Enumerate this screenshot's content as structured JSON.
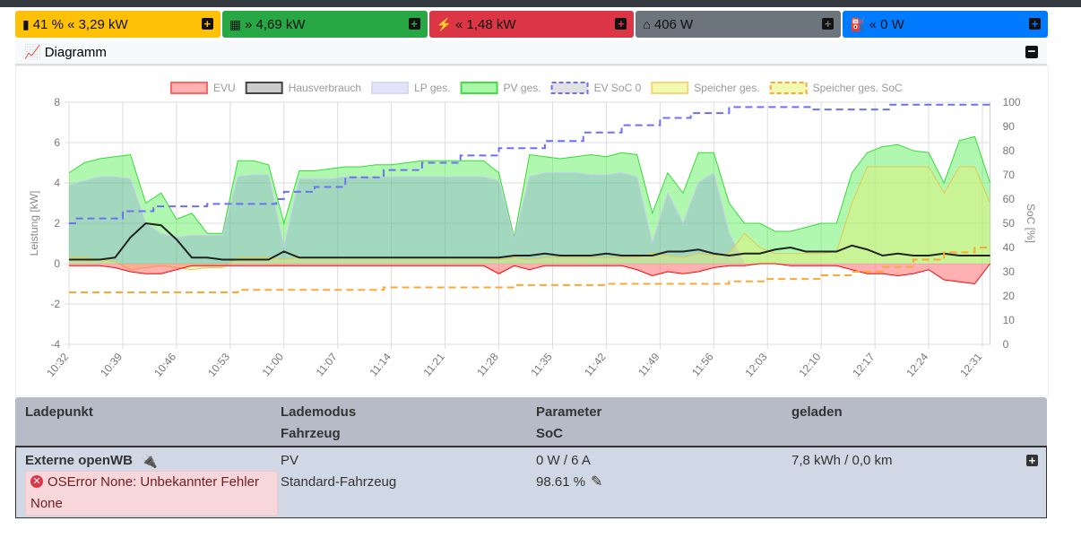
{
  "tiles": [
    {
      "icon": "battery-icon",
      "text": "41 % « 3,29 kW",
      "color": "#ffc107",
      "plus": "+"
    },
    {
      "icon": "solar-panel-icon",
      "text": "» 4,69 kW",
      "color": "#28a745",
      "plus": "+"
    },
    {
      "icon": "power-grid-icon",
      "text": "« 1,48 kW",
      "color": "#dc3545",
      "plus": "+"
    },
    {
      "icon": "house-icon",
      "text": "406 W",
      "color": "#6c757d",
      "plus": "+"
    },
    {
      "icon": "charging-station-icon",
      "text": "« 0 W",
      "color": "#007bff",
      "plus": "+"
    }
  ],
  "diagram": {
    "title": "Diagramm",
    "collapse": "−"
  },
  "chart_data": {
    "type": "area",
    "legend_position": "top",
    "ylabel": "Leistung [kW]",
    "y2label": "SoC [%]",
    "ylim": [
      -4,
      8
    ],
    "y2lim": [
      0,
      100
    ],
    "yticks": [
      "8",
      "6",
      "4",
      "2",
      "0",
      "-2",
      "-4"
    ],
    "y2ticks": [
      "100",
      "90",
      "80",
      "70",
      "60",
      "50",
      "40",
      "30",
      "20",
      "10",
      "0"
    ],
    "xticks": [
      "10:32",
      "10:39",
      "10:46",
      "10:53",
      "11:00",
      "11:07",
      "11:14",
      "11:21",
      "11:28",
      "11:35",
      "11:42",
      "11:49",
      "11:56",
      "12:03",
      "12:10",
      "12:17",
      "12:24",
      "12:31"
    ],
    "grid": true,
    "x": [
      "10:32",
      "10:34",
      "10:36",
      "10:38",
      "10:40",
      "10:42",
      "10:44",
      "10:46",
      "10:48",
      "10:50",
      "10:52",
      "10:54",
      "10:56",
      "10:58",
      "11:00",
      "11:02",
      "11:04",
      "11:06",
      "11:08",
      "11:10",
      "11:12",
      "11:14",
      "11:16",
      "11:18",
      "11:20",
      "11:22",
      "11:24",
      "11:26",
      "11:28",
      "11:30",
      "11:32",
      "11:34",
      "11:36",
      "11:38",
      "11:40",
      "11:42",
      "11:44",
      "11:46",
      "11:48",
      "11:50",
      "11:52",
      "11:54",
      "11:56",
      "11:58",
      "12:00",
      "12:02",
      "12:04",
      "12:06",
      "12:08",
      "12:10",
      "12:12",
      "12:14",
      "12:16",
      "12:18",
      "12:20",
      "12:22",
      "12:24",
      "12:26",
      "12:28",
      "12:30",
      "12:32"
    ],
    "series": [
      {
        "name": "EVU",
        "color": "#ff0000",
        "fill": "rgba(255,99,99,0.5)",
        "axis": "left",
        "values": [
          -0.1,
          -0.1,
          -0.1,
          -0.2,
          -0.4,
          -0.5,
          -0.5,
          -0.3,
          -0.1,
          -0.1,
          -0.1,
          -0.1,
          -0.1,
          -0.1,
          -0.1,
          -0.1,
          -0.1,
          -0.1,
          -0.1,
          -0.1,
          -0.1,
          -0.1,
          -0.1,
          -0.1,
          -0.1,
          -0.1,
          -0.1,
          -0.1,
          -0.5,
          -0.1,
          -0.3,
          -0.1,
          -0.1,
          -0.1,
          -0.1,
          -0.1,
          -0.1,
          -0.3,
          -0.6,
          -0.4,
          -0.5,
          -0.4,
          -0.2,
          -0.1,
          -0.1,
          0.0,
          0.0,
          -0.1,
          -0.1,
          -0.1,
          -0.1,
          -0.3,
          -0.5,
          -0.5,
          -0.6,
          -0.5,
          -0.3,
          -0.8,
          -0.9,
          -1.0,
          0.0
        ]
      },
      {
        "name": "Hausverbrauch",
        "color": "#222222",
        "fill": "rgba(200,200,200,0.5)",
        "axis": "left",
        "values": [
          0.2,
          0.2,
          0.2,
          0.3,
          1.3,
          2.0,
          1.9,
          1.2,
          0.3,
          0.3,
          0.2,
          0.2,
          0.2,
          0.2,
          0.6,
          0.3,
          0.3,
          0.3,
          0.3,
          0.3,
          0.3,
          0.3,
          0.3,
          0.3,
          0.3,
          0.3,
          0.3,
          0.3,
          0.3,
          0.4,
          0.4,
          0.5,
          0.4,
          0.4,
          0.4,
          0.5,
          0.4,
          0.4,
          0.4,
          0.6,
          0.6,
          0.7,
          0.5,
          0.4,
          0.5,
          0.5,
          0.7,
          0.8,
          0.6,
          0.6,
          0.6,
          0.9,
          0.7,
          0.4,
          0.5,
          0.4,
          0.4,
          0.5,
          0.4,
          0.4,
          0.4
        ]
      },
      {
        "name": "LP ges.",
        "color": "#c8c8f0",
        "fill": "rgba(120,120,230,0.25)",
        "axis": "left",
        "values": [
          3.9,
          4.1,
          4.3,
          4.3,
          4.2,
          2.0,
          1.5,
          1.3,
          1.4,
          1.4,
          1.4,
          4.3,
          4.4,
          4.4,
          0.8,
          4.2,
          4.2,
          4.2,
          4.3,
          4.3,
          4.3,
          4.3,
          4.3,
          4.3,
          4.3,
          4.3,
          4.3,
          4.3,
          4.1,
          1.2,
          4.3,
          4.5,
          4.5,
          4.5,
          4.4,
          4.4,
          4.5,
          4.3,
          1.0,
          3.5,
          2.0,
          4.0,
          4.5,
          1.5,
          0,
          0,
          0,
          0,
          0,
          0,
          0,
          0,
          0,
          0,
          0,
          0,
          0,
          0,
          0,
          0,
          0
        ]
      },
      {
        "name": "PV ges.",
        "color": "#33dd33",
        "fill": "rgba(80,240,80,0.45)",
        "axis": "left",
        "values": [
          4.5,
          5.0,
          5.2,
          5.3,
          5.4,
          3.0,
          3.5,
          2.2,
          2.5,
          1.5,
          1.5,
          5.1,
          5.1,
          4.9,
          2.0,
          4.6,
          4.6,
          4.7,
          4.8,
          4.8,
          4.9,
          4.9,
          5.0,
          5.1,
          5.1,
          5.1,
          5.1,
          5.1,
          4.5,
          1.3,
          5.4,
          5.3,
          5.2,
          5.3,
          5.4,
          5.3,
          5.5,
          5.4,
          2.5,
          4.5,
          3.5,
          5.5,
          5.5,
          3.0,
          2.0,
          2.0,
          1.6,
          1.6,
          1.8,
          2.0,
          2.0,
          4.5,
          5.5,
          5.8,
          5.9,
          5.6,
          5.5,
          4.0,
          6.1,
          6.3,
          4.0
        ]
      },
      {
        "name": "Speicher ges.",
        "color": "#e6c84c",
        "fill": "rgba(230,240,120,0.45)",
        "axis": "left",
        "values": [
          0.3,
          0.3,
          0.2,
          0.1,
          -0.3,
          -0.2,
          -0.1,
          -0.2,
          -0.3,
          -0.2,
          -0.2,
          0.3,
          0.3,
          0.3,
          0.2,
          0.3,
          0.3,
          0.3,
          0.3,
          0.3,
          0.3,
          0.3,
          0.3,
          0.3,
          0.3,
          0.3,
          0.3,
          0.3,
          0.2,
          0.3,
          0.2,
          0.3,
          0.3,
          0.3,
          0.3,
          0.3,
          0.3,
          0.3,
          0.5,
          0.4,
          0.3,
          0.5,
          0.4,
          0.5,
          1.5,
          0.8,
          0.5,
          0.5,
          0.5,
          0.5,
          0.6,
          3.0,
          4.8,
          4.8,
          4.8,
          4.8,
          4.8,
          3.5,
          4.8,
          4.8,
          3.0
        ]
      }
    ],
    "soc_series": [
      {
        "name": "EV SoC 0",
        "color": "#6f6ff6",
        "axis": "right",
        "points": [
          [
            "10:32",
            50
          ],
          [
            "10:33",
            52
          ],
          [
            "10:39",
            55
          ],
          [
            "10:43",
            57
          ],
          [
            "10:50",
            58
          ],
          [
            "10:59",
            60
          ],
          [
            "11:00",
            63
          ],
          [
            "11:04",
            65
          ],
          [
            "11:08",
            69
          ],
          [
            "11:13",
            72
          ],
          [
            "11:18",
            75
          ],
          [
            "11:23",
            78
          ],
          [
            "11:28",
            81
          ],
          [
            "11:34",
            84
          ],
          [
            "11:39",
            87.5
          ],
          [
            "11:44",
            90.5
          ],
          [
            "11:49",
            93.5
          ],
          [
            "11:53",
            95.5
          ],
          [
            "11:58",
            98
          ],
          [
            "12:09",
            97
          ],
          [
            "12:19",
            99
          ],
          [
            "12:32",
            99
          ]
        ]
      },
      {
        "name": "Speicher ges. SoC",
        "color": "#ffa733",
        "axis": "right",
        "points": [
          [
            "10:32",
            21.5
          ],
          [
            "10:54",
            22.5
          ],
          [
            "11:13",
            23.5
          ],
          [
            "11:30",
            24.5
          ],
          [
            "11:42",
            25
          ],
          [
            "11:58",
            26
          ],
          [
            "12:03",
            27
          ],
          [
            "12:10",
            28.5
          ],
          [
            "12:14",
            30
          ],
          [
            "12:18",
            32
          ],
          [
            "12:22",
            35
          ],
          [
            "12:26",
            38
          ],
          [
            "12:30",
            40
          ],
          [
            "12:32",
            40
          ]
        ]
      }
    ]
  },
  "table": {
    "headers": {
      "col1": "Ladepunkt",
      "col2a": "Lademodus",
      "col2b": "Fahrzeug",
      "col3a": "Parameter",
      "col3b": "SoC",
      "col4": "geladen"
    },
    "rows": [
      {
        "name": "Externe openWB",
        "mode": "PV",
        "vehicle": "Standard-Fahrzeug",
        "power": "0 W / 6 A",
        "soc": "98.61 %",
        "charged": "7,8 kWh / 0,0 km",
        "error": "OSError None: Unbekannter Fehler",
        "error2": "None",
        "plus": "+"
      }
    ]
  }
}
